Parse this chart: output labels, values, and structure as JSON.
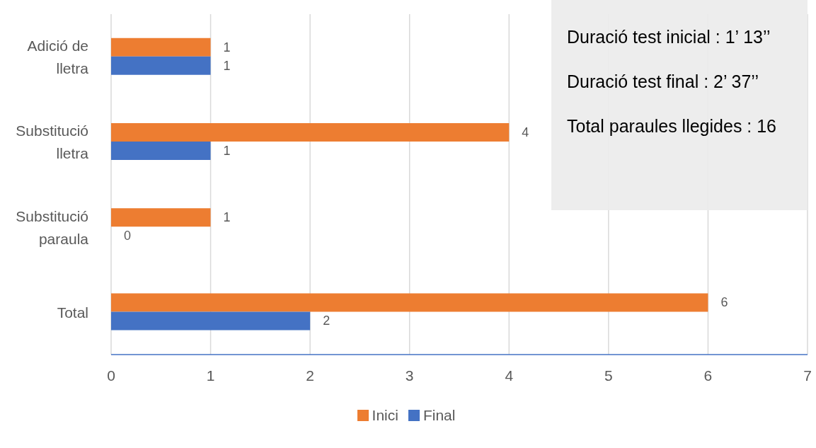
{
  "chart_data": {
    "type": "bar",
    "orientation": "horizontal",
    "categories": [
      "Adició de lletra",
      "Substitució lletra",
      "Substitució paraula",
      "Total"
    ],
    "series": [
      {
        "name": "Inici",
        "color": "#ed7d31",
        "values": [
          1,
          4,
          1,
          6
        ]
      },
      {
        "name": "Final",
        "color": "#4472c4",
        "values": [
          1,
          1,
          0,
          2
        ]
      }
    ],
    "xlim": [
      0,
      7
    ],
    "xticks": [
      0,
      1,
      2,
      3,
      4,
      5,
      6,
      7
    ],
    "grid": "x",
    "legend": "bottom",
    "data_labels": true,
    "annotations": [
      "Duració test inicial : 1’ 13’’",
      "Duració test final : 2’ 37’’",
      "Total paraules llegides : 16"
    ]
  }
}
